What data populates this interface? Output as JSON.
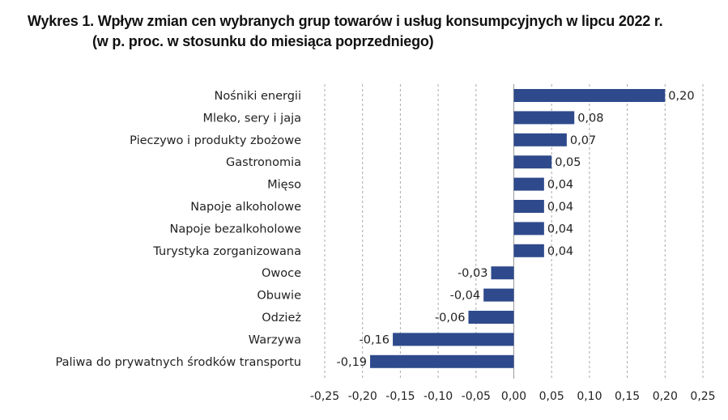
{
  "chart_data": {
    "type": "bar",
    "orientation": "horizontal",
    "title": "Wykres 1. Wpływ zmian cen wybranych grup towarów i usług konsumpcyjnych w lipcu 2022 r.",
    "subtitle": "(w p. proc. w stosunku do miesiąca poprzedniego)",
    "categories": [
      "Nośniki energii",
      "Mleko, sery i jaja",
      "Pieczywo i produkty zbożowe",
      "Gastronomia",
      "Mięso",
      "Napoje alkoholowe",
      "Napoje bezalkoholowe",
      "Turystyka zorganizowana",
      "Owoce",
      "Obuwie",
      "Odzież",
      "Warzywa",
      "Paliwa do prywatnych środków transportu"
    ],
    "values": [
      0.2,
      0.08,
      0.07,
      0.05,
      0.04,
      0.04,
      0.04,
      0.04,
      -0.03,
      -0.04,
      -0.06,
      -0.16,
      -0.19
    ],
    "value_labels": [
      "0,20",
      "0,08",
      "0,07",
      "0,05",
      "0,04",
      "0,04",
      "0,04",
      "0,04",
      "-0,03",
      "-0,04",
      "-0,06",
      "-0,16",
      "-0,19"
    ],
    "xlim": [
      -0.25,
      0.25
    ],
    "x_ticks": [
      -0.25,
      -0.2,
      -0.15,
      -0.1,
      -0.05,
      0.0,
      0.05,
      0.1,
      0.15,
      0.2,
      0.25
    ],
    "x_tick_labels": [
      "-0,25",
      "-0,20",
      "-0,15",
      "-0,10",
      "-0,05",
      "0,00",
      "0,05",
      "0,10",
      "0,15",
      "0,20",
      "0,25"
    ],
    "xlabel": "",
    "ylabel": "",
    "grid": "vertical dashed",
    "legend": "none",
    "bar_color": "#2e4a8c"
  }
}
